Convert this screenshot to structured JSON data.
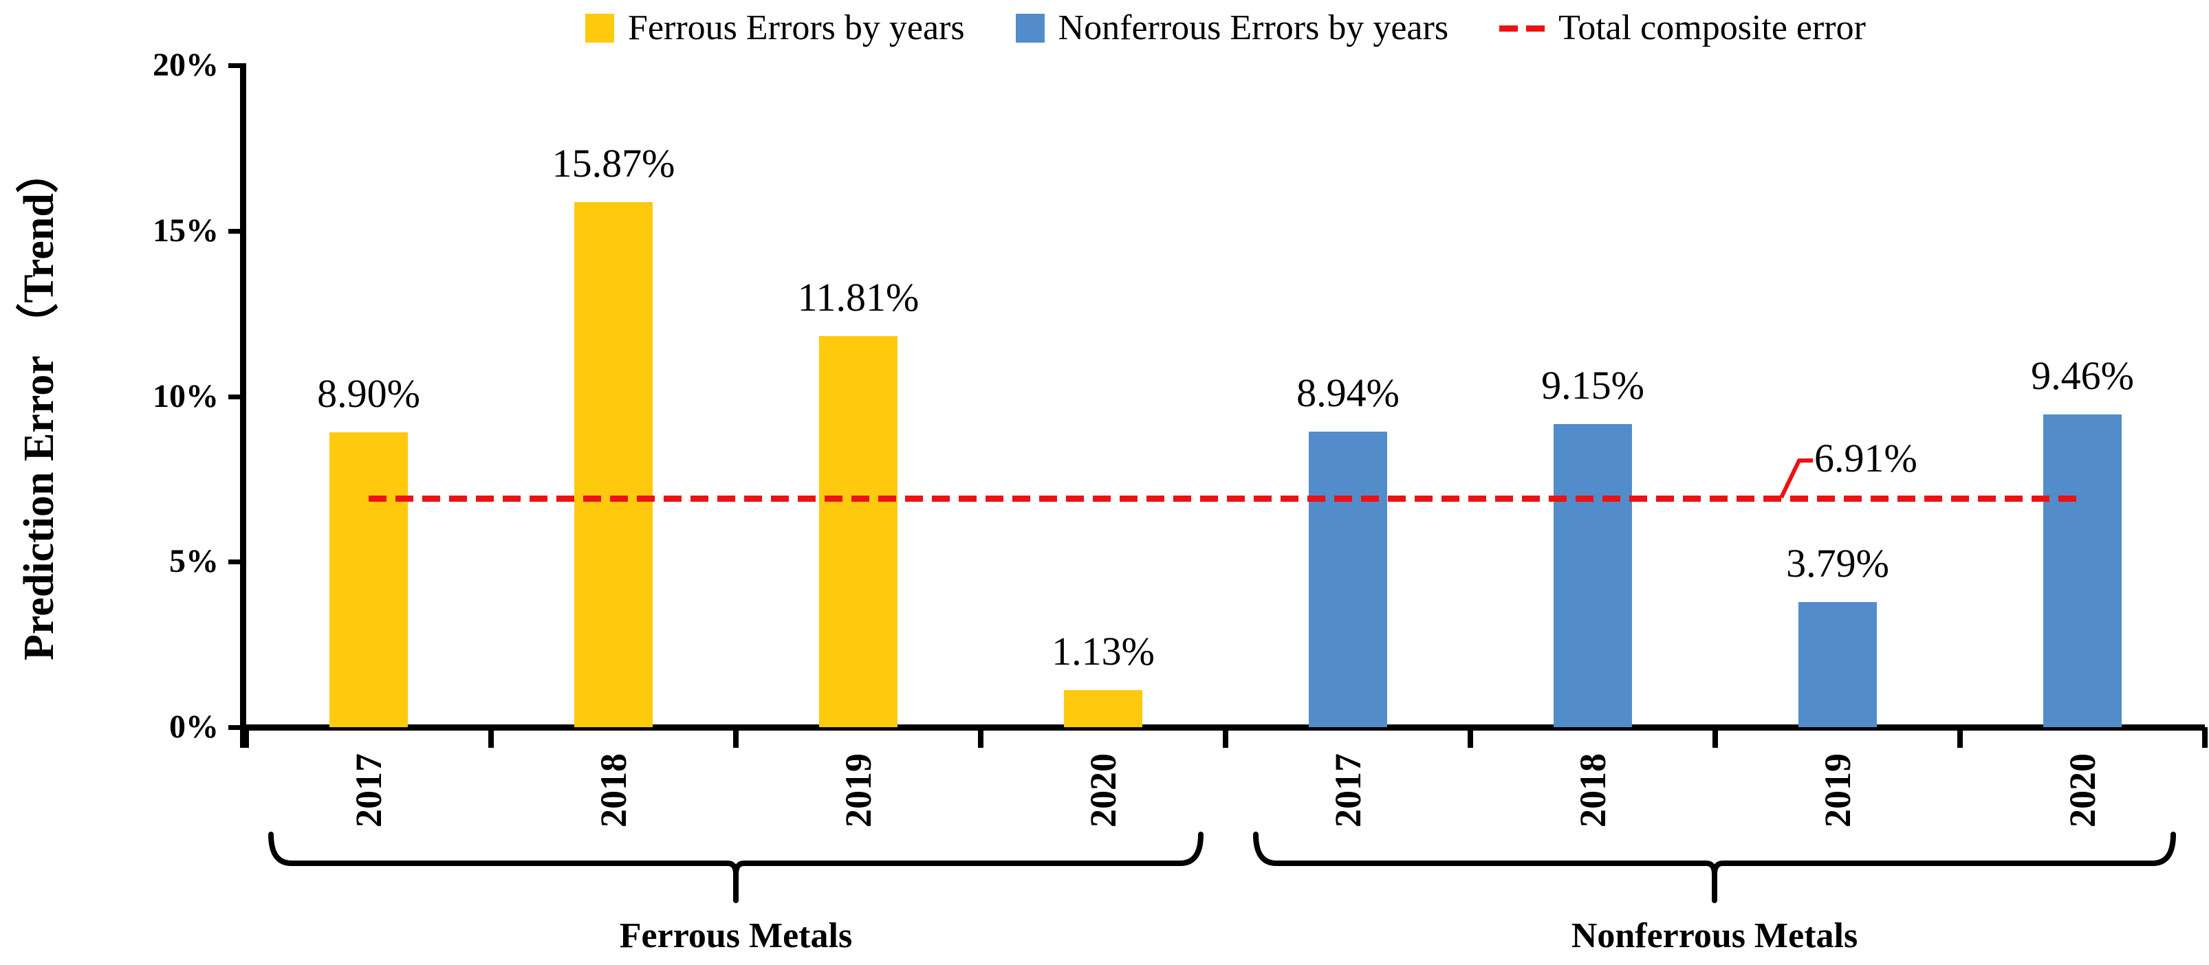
{
  "chart_data": {
    "type": "bar",
    "title": "",
    "ylabel": "Prediction Error （Trend）",
    "xlabel": "",
    "ylim": [
      0,
      20
    ],
    "ytick_values": [
      0,
      5,
      10,
      15,
      20
    ],
    "ytick_labels": [
      "0%",
      "5%",
      "10%",
      "15%",
      "20%"
    ],
    "grid": false,
    "legend_position": "top",
    "series": [
      {
        "name": "Ferrous Errors by years",
        "group_label": "Ferrous Metals",
        "color": "#FFC90E",
        "categories": [
          "2017",
          "2018",
          "2019",
          "2020"
        ],
        "values": [
          8.9,
          15.87,
          11.81,
          1.13
        ],
        "value_labels": [
          "8.90%",
          "15.87%",
          "11.81%",
          "1.13%"
        ]
      },
      {
        "name": "Nonferrous Errors by years",
        "group_label": "Nonferrous Metals",
        "color": "#528CCB",
        "categories": [
          "2017",
          "2018",
          "2019",
          "2020"
        ],
        "values": [
          8.94,
          9.15,
          3.79,
          9.46
        ],
        "value_labels": [
          "8.94%",
          "9.15%",
          "3.79%",
          "9.46%"
        ]
      }
    ],
    "reference_line": {
      "name": "Total composite error",
      "value": 6.91,
      "label": "6.91%",
      "color": "#EE1111",
      "style": "dashed"
    }
  },
  "legend": {
    "items": [
      {
        "label": "Ferrous Errors by years",
        "swatch": "yellow-square",
        "color": "#FFC90E"
      },
      {
        "label": "Nonferrous Errors by years",
        "swatch": "blue-square",
        "color": "#528CCB"
      },
      {
        "label": "Total composite error",
        "swatch": "red-dashed-line",
        "color": "#EE1111"
      }
    ]
  }
}
